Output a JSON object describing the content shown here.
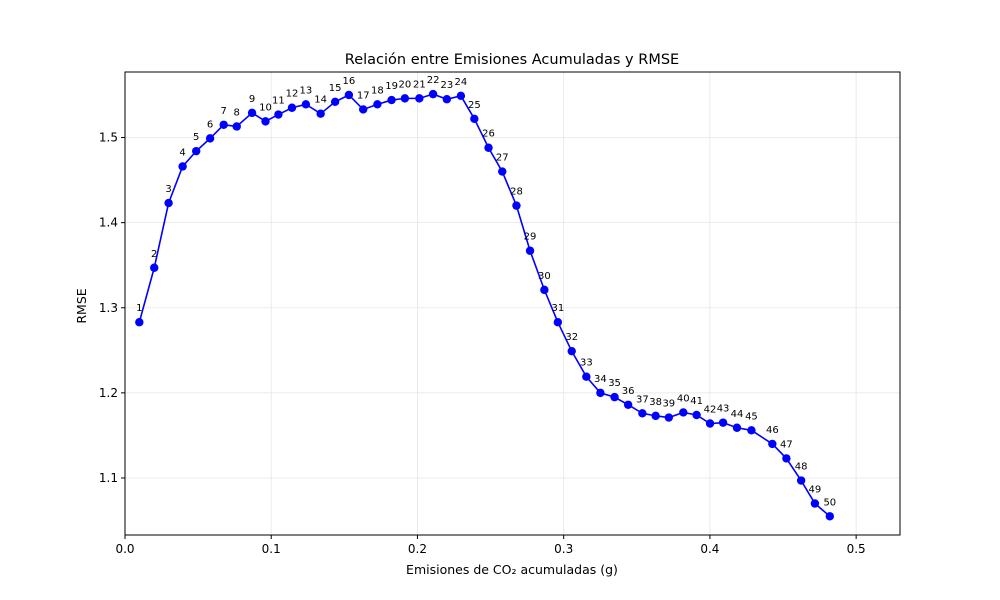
{
  "chart_data": {
    "type": "line",
    "title": "Relación entre Emisiones Acumuladas y RMSE",
    "xlabel": "Emisiones de CO₂ acumuladas (g)",
    "ylabel": "RMSE",
    "xlim": [
      0.0,
      0.53
    ],
    "ylim": [
      1.033,
      1.577
    ],
    "xticks": [
      0.0,
      0.1,
      0.2,
      0.3,
      0.4,
      0.5
    ],
    "xtick_labels": [
      "0.0",
      "0.1",
      "0.2",
      "0.3",
      "0.4",
      "0.5"
    ],
    "yticks": [
      1.1,
      1.2,
      1.3,
      1.4,
      1.5
    ],
    "ytick_labels": [
      "1.1",
      "1.2",
      "1.3",
      "1.4",
      "1.5"
    ],
    "grid": true,
    "series": [
      {
        "color": "#0000ff",
        "marker": "circle",
        "x": [
          0.0098,
          0.02,
          0.0298,
          0.0394,
          0.0487,
          0.0582,
          0.0675,
          0.0764,
          0.0869,
          0.0961,
          0.1049,
          0.1142,
          0.1237,
          0.1338,
          0.1437,
          0.1531,
          0.1629,
          0.1726,
          0.1823,
          0.1914,
          0.2013,
          0.2107,
          0.2201,
          0.2297,
          0.2389,
          0.2486,
          0.258,
          0.2677,
          0.277,
          0.2868,
          0.296,
          0.3055,
          0.3155,
          0.3251,
          0.3348,
          0.3441,
          0.3538,
          0.3629,
          0.3719,
          0.3818,
          0.3909,
          0.4001,
          0.409,
          0.4185,
          0.4284,
          0.4427,
          0.4523,
          0.4624,
          0.4718,
          0.482
        ],
        "y": [
          1.283,
          1.347,
          1.423,
          1.466,
          1.484,
          1.499,
          1.515,
          1.513,
          1.529,
          1.519,
          1.527,
          1.535,
          1.539,
          1.528,
          1.542,
          1.55,
          1.533,
          1.539,
          1.544,
          1.546,
          1.546,
          1.551,
          1.545,
          1.549,
          1.522,
          1.488,
          1.46,
          1.42,
          1.367,
          1.321,
          1.283,
          1.249,
          1.219,
          1.2,
          1.195,
          1.186,
          1.176,
          1.173,
          1.171,
          1.177,
          1.174,
          1.164,
          1.165,
          1.159,
          1.156,
          1.14,
          1.123,
          1.097,
          1.07,
          1.055
        ],
        "labels": [
          "1",
          "2",
          "3",
          "4",
          "5",
          "6",
          "7",
          "8",
          "9",
          "10",
          "11",
          "12",
          "13",
          "14",
          "15",
          "16",
          "17",
          "18",
          "19",
          "20",
          "21",
          "22",
          "23",
          "24",
          "25",
          "26",
          "27",
          "28",
          "29",
          "30",
          "31",
          "32",
          "33",
          "34",
          "35",
          "36",
          "37",
          "38",
          "39",
          "40",
          "41",
          "42",
          "43",
          "44",
          "45",
          "46",
          "47",
          "48",
          "49",
          "50"
        ]
      }
    ]
  }
}
